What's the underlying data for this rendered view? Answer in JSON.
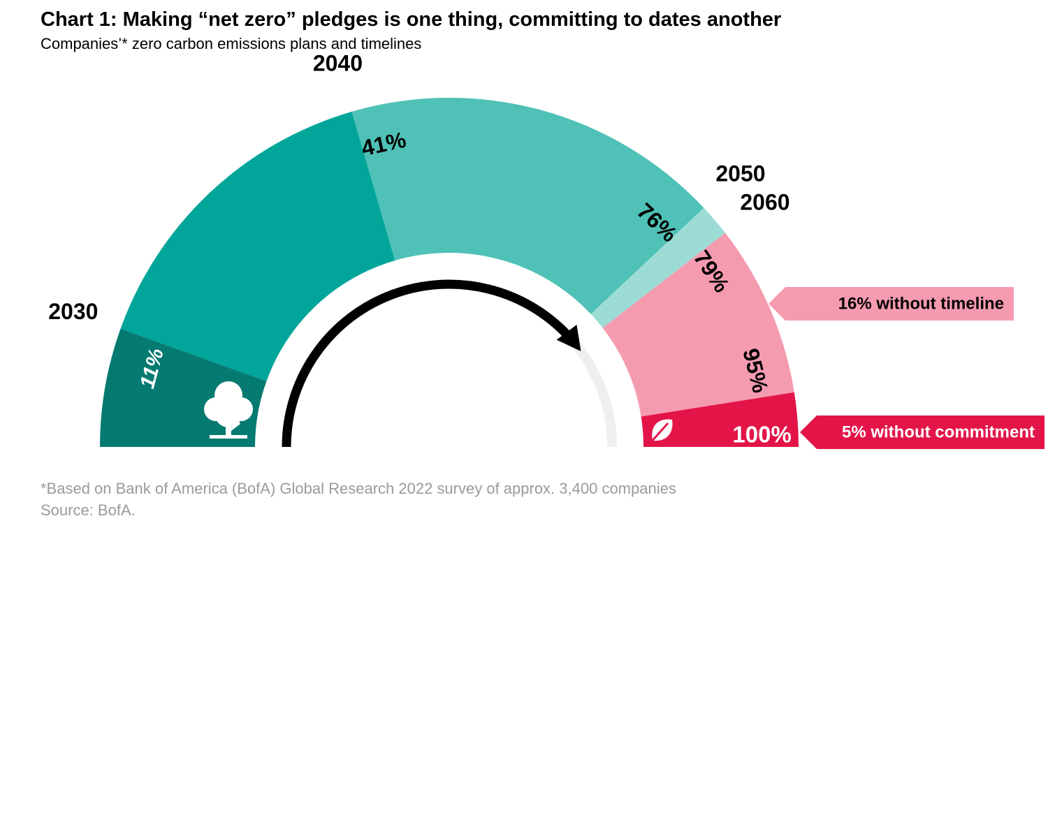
{
  "header": {
    "title": "Chart 1: Making “net zero” pledges is one thing, committing to dates another",
    "subtitle": "Companies’* zero carbon emissions plans and timelines"
  },
  "footer": {
    "note": "*Based on Bank of America (BofA) Global Research 2022 survey of approx. 3,400 companies",
    "source": "Source: BofA."
  },
  "chart_data": {
    "type": "pie",
    "shape": "half-donut gauge, cumulative",
    "categories": [
      "2030",
      "2040",
      "2050",
      "2060",
      "without timeline",
      "without commitment"
    ],
    "values": [
      11,
      30,
      35,
      3,
      16,
      5
    ],
    "cumulative_labels": [
      "11%",
      "41%",
      "76%",
      "79%",
      "95%",
      "100%"
    ],
    "year_labels": [
      "2030",
      "2040",
      "2050",
      "2060"
    ],
    "callouts": [
      {
        "text": "16% without timeline",
        "color": "#f59bb0",
        "text_color": "#000000"
      },
      {
        "text": "5% without commitment",
        "color": "#e31548",
        "text_color": "#ffffff"
      }
    ],
    "colors": [
      "#047a70",
      "#01a59a",
      "#4fc1b6",
      "#9ddcd5",
      "#f59bb0",
      "#e31548"
    ],
    "icons": [
      "tree-icon",
      "leaf-icon",
      "clockwise-arrow-icon"
    ]
  }
}
